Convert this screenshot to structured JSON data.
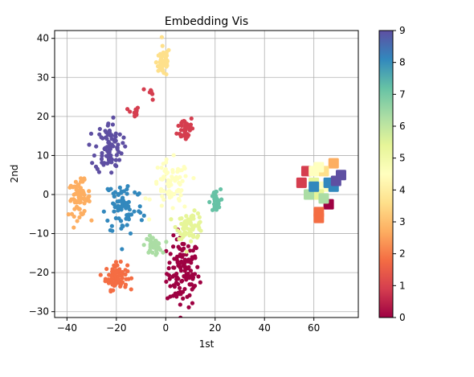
{
  "chart_data": {
    "type": "scatter",
    "title": "Embedding Vis",
    "xlabel": "1st",
    "ylabel": "2nd",
    "xlim": [
      -45,
      78
    ],
    "ylim": [
      -31.5,
      42
    ],
    "xticks": [
      -40,
      -20,
      0,
      20,
      40,
      60
    ],
    "yticks": [
      -30,
      -20,
      -10,
      0,
      10,
      20,
      30,
      40
    ],
    "grid": true,
    "colormap": "Spectral",
    "colorbar": {
      "min": 0,
      "max": 9,
      "ticks": [
        0,
        1,
        2,
        3,
        4,
        5,
        6,
        7,
        8,
        9
      ]
    },
    "clusters": [
      {
        "label": 0,
        "center": [
          7,
          -20
        ],
        "spread": [
          6,
          8
        ],
        "count": 120,
        "color": "#9e0142"
      },
      {
        "label": 1,
        "center": [
          -13,
          21
        ],
        "spread": [
          2,
          1.5
        ],
        "count": 12,
        "color": "#d53e4f"
      },
      {
        "label": 1,
        "center": [
          8,
          17
        ],
        "spread": [
          3,
          3
        ],
        "count": 40,
        "color": "#d53e4f"
      },
      {
        "label": 1,
        "center": [
          -6,
          26
        ],
        "spread": [
          1.5,
          1.5
        ],
        "count": 8,
        "color": "#d53e4f"
      },
      {
        "label": 2,
        "center": [
          -20,
          -21
        ],
        "spread": [
          4,
          3
        ],
        "count": 80,
        "color": "#f46d43"
      },
      {
        "label": 3,
        "center": [
          -35,
          -1
        ],
        "spread": [
          4,
          4
        ],
        "count": 70,
        "color": "#fdae61"
      },
      {
        "label": 4,
        "center": [
          -1,
          34
        ],
        "spread": [
          2.5,
          3.5
        ],
        "count": 55,
        "color": "#fee08b"
      },
      {
        "label": 5,
        "center": [
          2,
          2
        ],
        "spread": [
          7,
          6
        ],
        "count": 70,
        "color": "#ffffbf"
      },
      {
        "label": 6,
        "center": [
          10,
          -8
        ],
        "spread": [
          5,
          3
        ],
        "count": 70,
        "color": "#e6f598"
      },
      {
        "label": 7,
        "center": [
          -5,
          -13
        ],
        "spread": [
          3,
          2
        ],
        "count": 40,
        "color": "#abdda4"
      },
      {
        "label": 7,
        "center": [
          20,
          -2
        ],
        "spread": [
          2,
          3
        ],
        "count": 30,
        "color": "#66c2a5"
      },
      {
        "label": 8,
        "center": [
          -17,
          -3
        ],
        "spread": [
          7,
          7
        ],
        "count": 75,
        "color": "#3288bd"
      },
      {
        "label": 9,
        "center": [
          -23,
          12
        ],
        "spread": [
          5,
          6
        ],
        "count": 90,
        "color": "#5e4fa2"
      }
    ],
    "centroids": [
      {
        "label": 0,
        "x": 66,
        "y": -2.5
      },
      {
        "label": 1,
        "x": 57,
        "y": 6
      },
      {
        "label": 1,
        "x": 55,
        "y": 3
      },
      {
        "label": 2,
        "x": 62,
        "y": -4.5
      },
      {
        "label": 2,
        "x": 62,
        "y": -6
      },
      {
        "label": 3,
        "x": 68,
        "y": 8
      },
      {
        "label": 4,
        "x": 64,
        "y": 6
      },
      {
        "label": 5,
        "x": 62,
        "y": 7
      },
      {
        "label": 5,
        "x": 60,
        "y": 6
      },
      {
        "label": 5,
        "x": 64,
        "y": 2
      },
      {
        "label": 6,
        "x": 60,
        "y": 3
      },
      {
        "label": 6,
        "x": 62,
        "y": 0
      },
      {
        "label": 7,
        "x": 64,
        "y": -1
      },
      {
        "label": 7,
        "x": 58,
        "y": 0
      },
      {
        "label": 8,
        "x": 66,
        "y": 3
      },
      {
        "label": 8,
        "x": 60,
        "y": 2
      },
      {
        "label": 8,
        "x": 68,
        "y": 2
      },
      {
        "label": 9,
        "x": 71,
        "y": 5
      },
      {
        "label": 9,
        "x": 69,
        "y": 3.5
      }
    ]
  }
}
